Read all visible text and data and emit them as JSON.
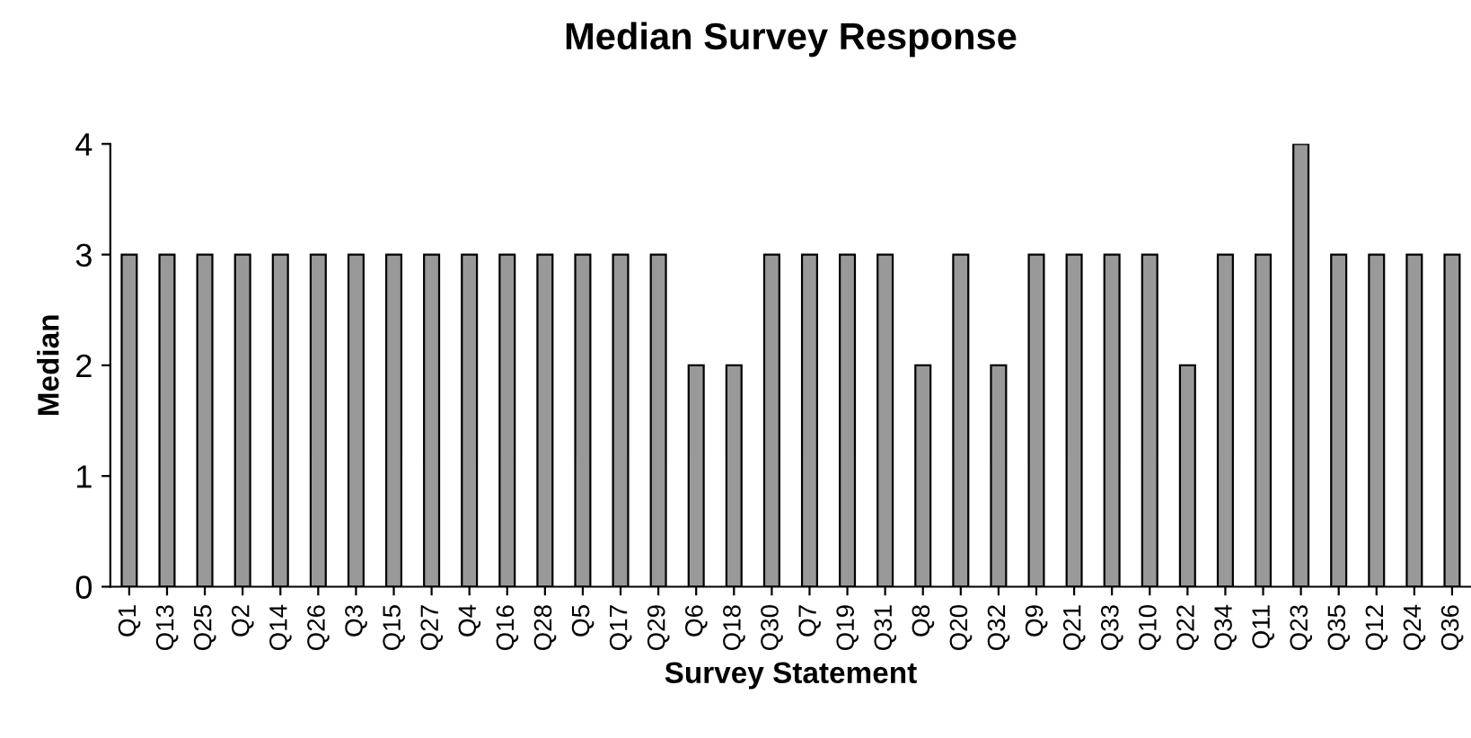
{
  "chart_data": {
    "type": "bar",
    "title": "Median Survey Response",
    "xlabel": "Survey Statement",
    "ylabel": "Median",
    "categories": [
      "Q1",
      "Q13",
      "Q25",
      "Q2",
      "Q14",
      "Q26",
      "Q3",
      "Q15",
      "Q27",
      "Q4",
      "Q16",
      "Q28",
      "Q5",
      "Q17",
      "Q29",
      "Q6",
      "Q18",
      "Q30",
      "Q7",
      "Q19",
      "Q31",
      "Q8",
      "Q20",
      "Q32",
      "Q9",
      "Q21",
      "Q33",
      "Q10",
      "Q22",
      "Q34",
      "Q11",
      "Q23",
      "Q35",
      "Q12",
      "Q24",
      "Q36"
    ],
    "values": [
      3,
      3,
      3,
      3,
      3,
      3,
      3,
      3,
      3,
      3,
      3,
      3,
      3,
      3,
      3,
      2,
      2,
      3,
      3,
      3,
      3,
      2,
      3,
      2,
      3,
      3,
      3,
      3,
      2,
      3,
      3,
      4,
      3,
      3,
      3,
      3
    ],
    "color": "#999999",
    "ylim": [
      0,
      4
    ],
    "yticks": [
      0,
      1,
      2,
      3,
      4
    ],
    "grid": false,
    "legend": false
  }
}
